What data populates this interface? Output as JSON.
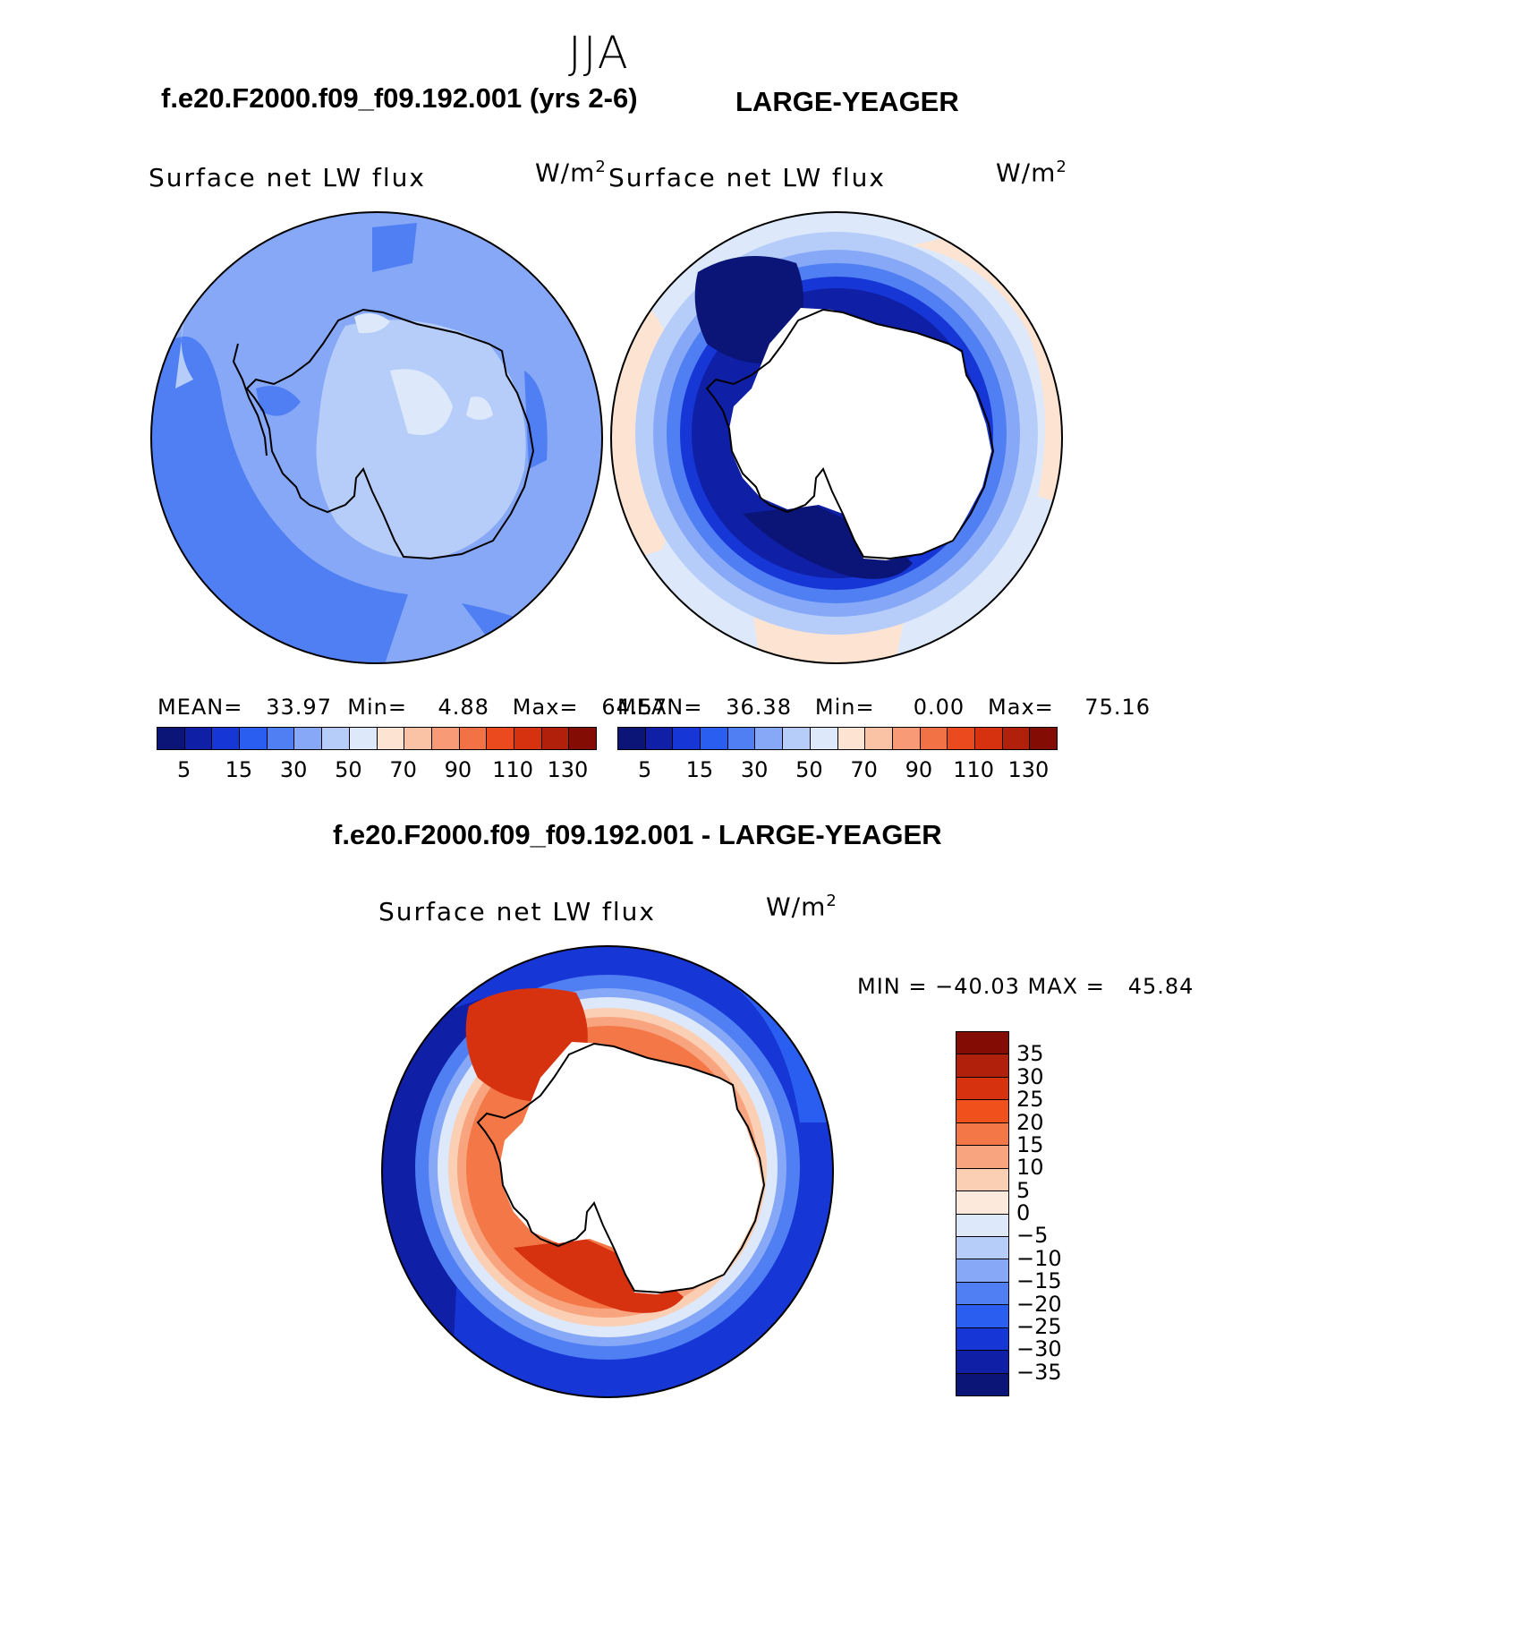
{
  "header": {
    "season": "JJA"
  },
  "top": {
    "left_title": "f.e20.F2000.f09_f09.192.001 (yrs 2-6)",
    "right_title": "LARGE-YEAGER",
    "left_panel": {
      "label": "Surface net LW flux",
      "units_base": "W/m",
      "units_exp": "2",
      "mean_label": "MEAN=",
      "mean_value": "33.97",
      "min_label": "Min=",
      "min_value": "4.88",
      "max_label": "Max=",
      "max_value": "64.57"
    },
    "right_panel": {
      "label": "Surface net LW flux",
      "units_base": "W/m",
      "units_exp": "2",
      "mean_label": "MEAN=",
      "mean_value": "36.38",
      "min_label": "Min=",
      "min_value": "0.00",
      "max_label": "Max=",
      "max_value": "75.16"
    },
    "colorbar_labels": [
      "5",
      "15",
      "30",
      "50",
      "70",
      "90",
      "110",
      "130"
    ],
    "colorbar_colors": [
      "#0a1577",
      "#0f1fa6",
      "#1736d6",
      "#2a5ef0",
      "#4f7ff2",
      "#86a8f7",
      "#b7cdf9",
      "#dde9fb",
      "#fde4d2",
      "#fbc3a6",
      "#f79a75",
      "#f27246",
      "#eb4a1f",
      "#d63210",
      "#b1200b",
      "#830d05"
    ]
  },
  "bottom": {
    "title": "f.e20.F2000.f09_f09.192.001 - LARGE-YEAGER",
    "panel": {
      "label": "Surface net LW flux",
      "units_base": "W/m",
      "units_exp": "2",
      "minmax_text": "MIN = −40.03 MAX =   45.84"
    },
    "colorbar_labels": [
      "35",
      "30",
      "25",
      "20",
      "15",
      "10",
      "5",
      "0",
      "−5",
      "−10",
      "−15",
      "−20",
      "−25",
      "−30",
      "−35"
    ],
    "colorbar_colors": [
      "#830d05",
      "#b1200b",
      "#d63210",
      "#f0501c",
      "#f47847",
      "#f8a47f",
      "#fbcfb4",
      "#fde9dc",
      "#dde9fb",
      "#b7cdf9",
      "#86a8f7",
      "#4f7ff2",
      "#2a5ef0",
      "#1736d6",
      "#0f1fa6",
      "#0a1577"
    ]
  },
  "map_colors": {
    "ocean_left": "#86a8f7",
    "mid_blue": "#4f7ff2",
    "light_blue": "#b7cdf9",
    "pale_blue": "#dde9fb",
    "peach": "#fde4d2",
    "navy": "#0a1577",
    "deep_blue": "#0f1fa6",
    "strong_blue": "#1736d6",
    "red_dark": "#d63210",
    "red_mid": "#f0501c",
    "orange": "#f47847",
    "salmon": "#f8a47f"
  }
}
